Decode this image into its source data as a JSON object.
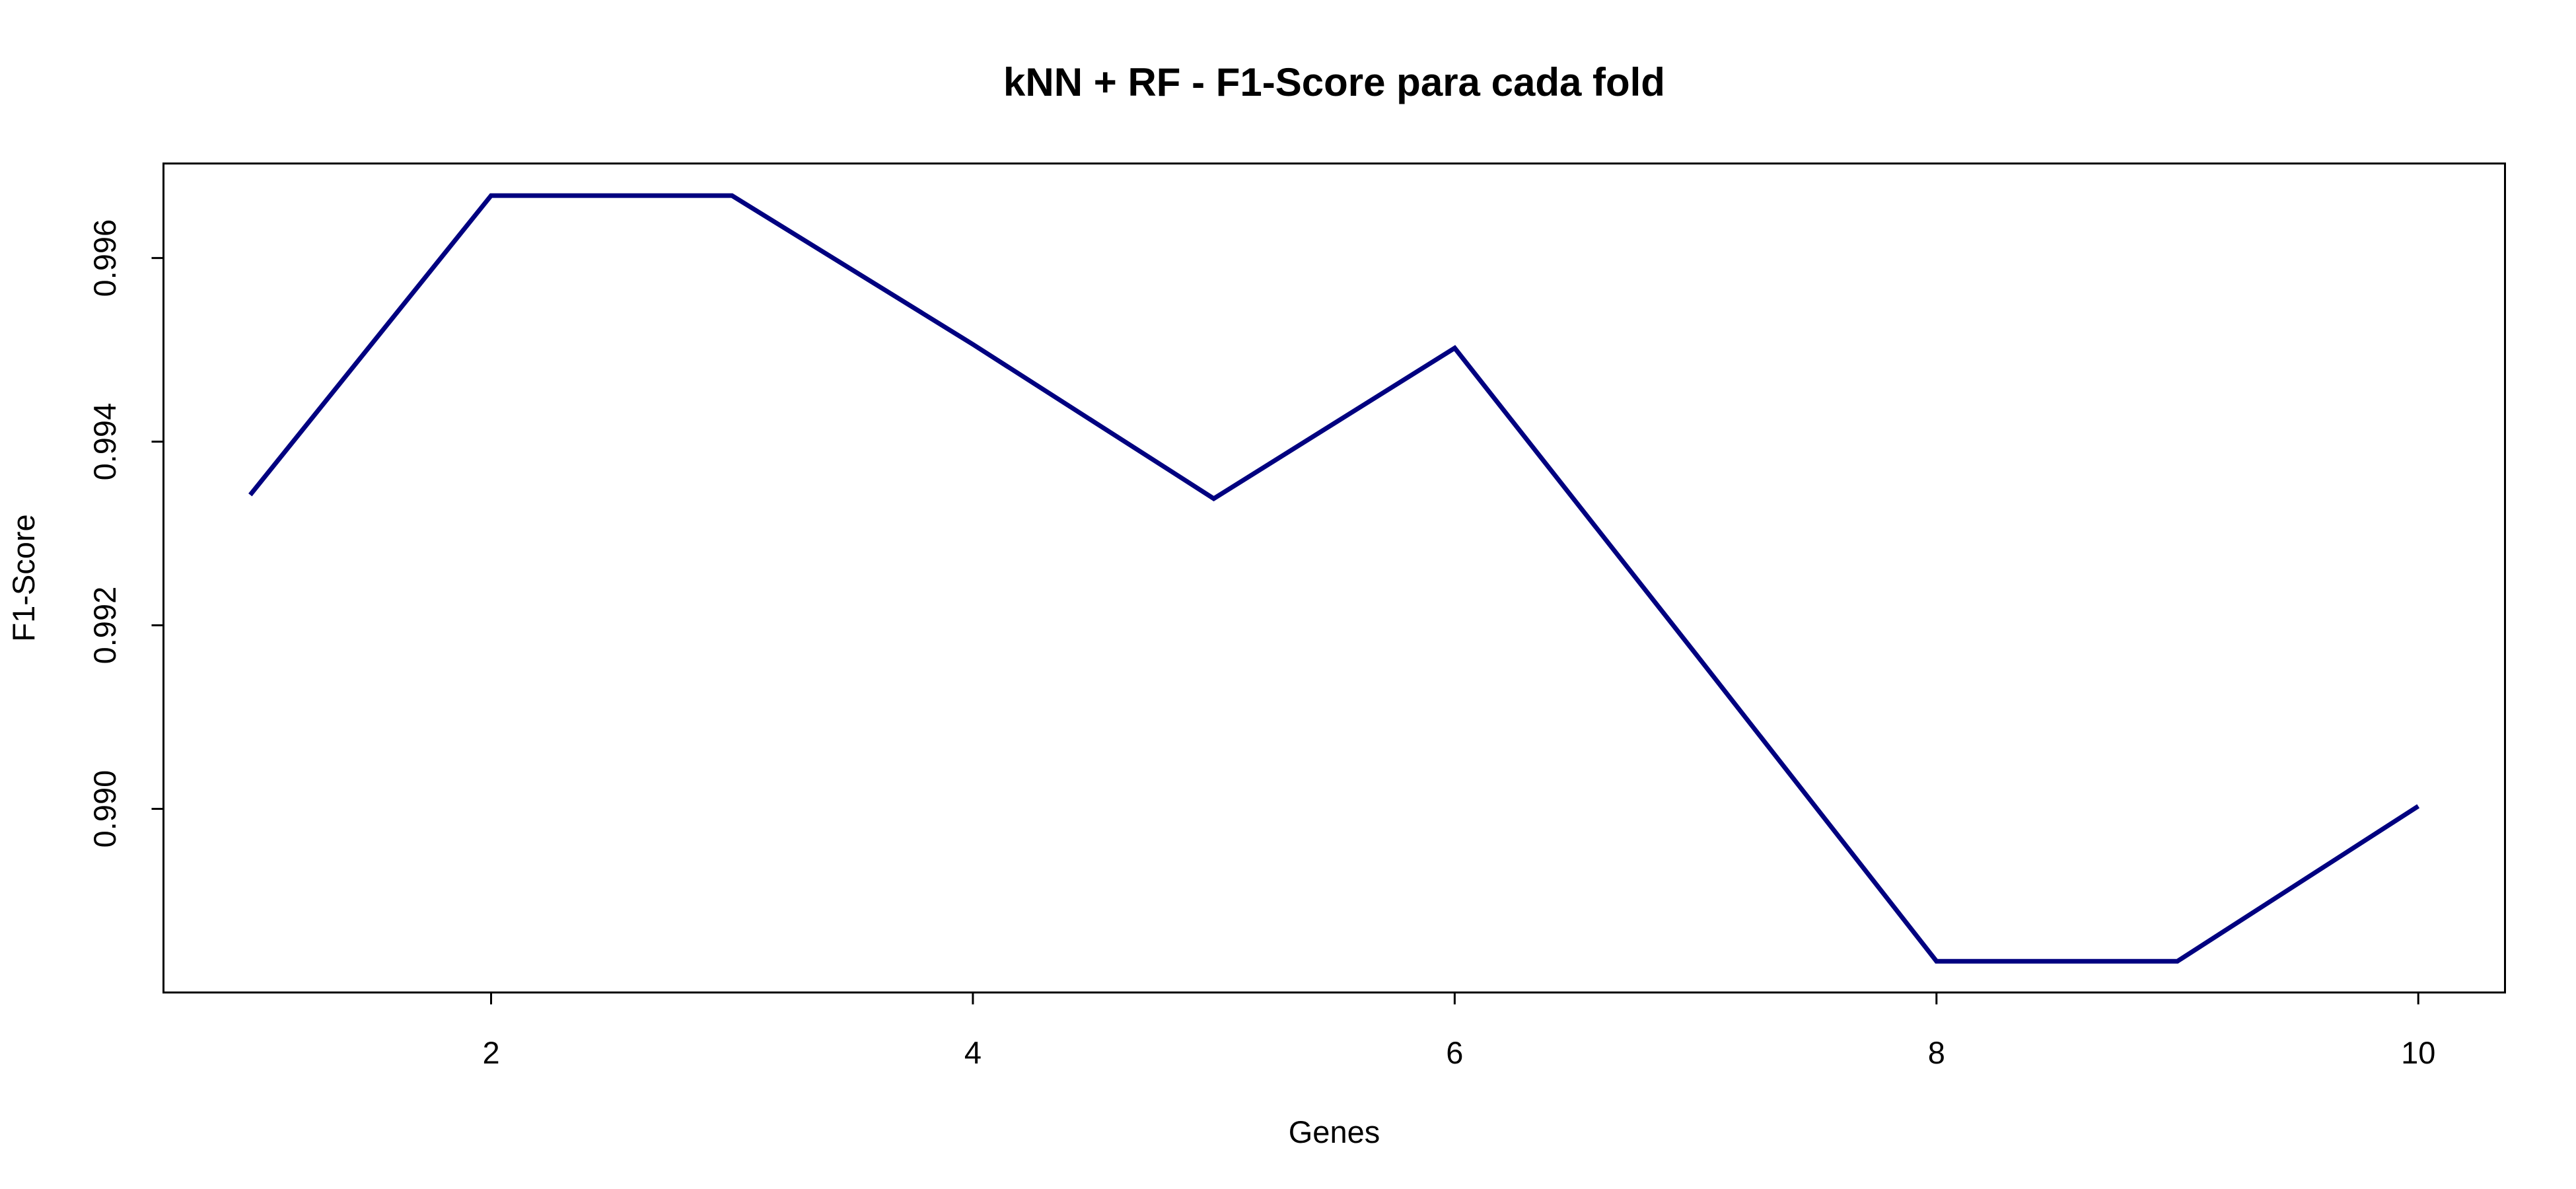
{
  "chart_data": {
    "type": "line",
    "title": "kNN + RF - F1-Score para cada fold",
    "xlabel": "Genes",
    "ylabel": "F1-Score",
    "x": [
      1,
      2,
      3,
      4,
      5,
      6,
      7,
      8,
      9,
      10
    ],
    "series": [
      {
        "values": [
          0.99342,
          0.99668,
          0.99668,
          0.99506,
          0.99338,
          0.99502,
          0.99169,
          0.98834,
          0.98834,
          0.99003
        ],
        "color": "#000080"
      }
    ],
    "xlim": [
      0.64,
      10.36
    ],
    "ylim": [
      0.988,
      0.99703
    ],
    "xticks": [
      2,
      4,
      6,
      8,
      10
    ],
    "xtick_labels": [
      "2",
      "4",
      "6",
      "8",
      "10"
    ],
    "yticks": [
      0.99,
      0.992,
      0.994,
      0.996
    ],
    "ytick_labels": [
      "0.990",
      "0.992",
      "0.994",
      "0.996"
    ],
    "grid": false,
    "legend": "none"
  }
}
